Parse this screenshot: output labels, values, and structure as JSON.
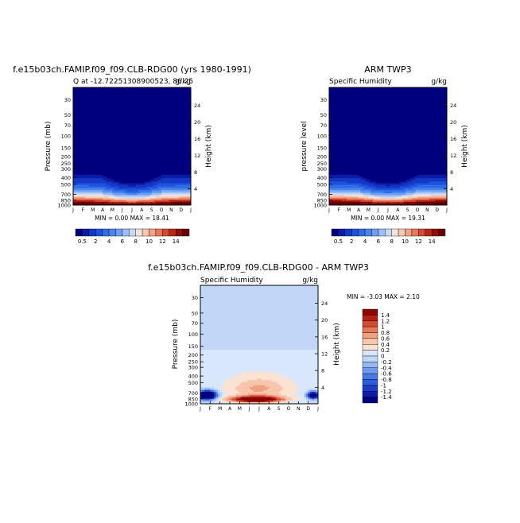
{
  "chart_data": [
    {
      "type": "heatmap",
      "title": "f.e15b03ch.FAMIP.f09_f09.CLB-RDG00 (yrs 1980-1991)",
      "subtitle_left": "Q at -12.72251308900523, 86.25",
      "subtitle_right": "g/kg",
      "stats_text": "MIN =    0.00 MAX =   18.41",
      "ylabel": "Pressure (mb)",
      "y2label": "Height (km)",
      "x_ticks": [
        "J",
        "F",
        "M",
        "A",
        "M",
        "J",
        "J",
        "A",
        "S",
        "O",
        "N",
        "D",
        "J"
      ],
      "y_ticks": [
        30,
        50,
        70,
        100,
        150,
        200,
        250,
        300,
        400,
        500,
        700,
        850,
        1000
      ],
      "y2_ticks": [
        24,
        20,
        16,
        12,
        8,
        4
      ],
      "colorbar_labels": [
        "0.5",
        "2",
        "4",
        "6",
        "8",
        "10",
        "12",
        "14"
      ],
      "min": 0.0,
      "max": 18.41,
      "field": "humidity",
      "surface_value": 17.6,
      "humid_top_mb": 300,
      "dry_season_amplitude": 0.25,
      "moist_season_amplitude": 0.06
    },
    {
      "type": "heatmap",
      "title": "ARM TWP3",
      "subtitle_left": "Specific Humidity",
      "subtitle_right": "g/kg",
      "stats_text": "MIN =    0.00 MAX =   19.31",
      "ylabel": "pressure  level",
      "y2label": "Height (km)",
      "x_ticks": [
        "J",
        "F",
        "M",
        "A",
        "M",
        "J",
        "J",
        "A",
        "S",
        "O",
        "N",
        "D",
        "J"
      ],
      "y_ticks": [
        30,
        50,
        70,
        100,
        150,
        200,
        250,
        300,
        400,
        500,
        700,
        850,
        1000
      ],
      "y2_ticks": [
        24,
        20,
        16,
        12,
        8,
        4
      ],
      "colorbar_labels": [
        "0.5",
        "2",
        "4",
        "6",
        "8",
        "10",
        "12",
        "14"
      ],
      "min": 0.0,
      "max": 19.31,
      "field": "humidity",
      "surface_value": 18.4,
      "humid_top_mb": 300,
      "dry_season_amplitude": 0.25,
      "moist_season_amplitude": 0.07
    },
    {
      "type": "heatmap",
      "title": "f.e15b03ch.FAMIP.f09_f09.CLB-RDG00 - ARM TWP3",
      "subtitle_left": "Specific Humidity",
      "subtitle_right": "g/kg",
      "stats_text": "MIN =   -3.03 MAX =    2.10",
      "ylabel": "Pressure (mb)",
      "y2label": "Height (km)",
      "x_ticks": [
        "J",
        "F",
        "M",
        "A",
        "M",
        "J",
        "J",
        "A",
        "S",
        "O",
        "N",
        "D",
        "J"
      ],
      "y_ticks": [
        30,
        50,
        70,
        100,
        150,
        200,
        250,
        300,
        400,
        500,
        700,
        850,
        1000
      ],
      "y2_ticks": [
        24,
        20,
        16,
        12,
        8,
        4
      ],
      "colorbar_labels": [
        "1.4",
        "1.2",
        "1",
        "0.8",
        "0.6",
        "0.4",
        "0.2",
        "0",
        "-0.2",
        "-0.4",
        "-0.6",
        "-0.8",
        "-1",
        "-1.2",
        "-1.4"
      ],
      "min": -3.03,
      "max": 2.1,
      "field": "difference",
      "features": {
        "stratosphere_value": -0.1,
        "upper_trop_value": 0.1,
        "wet_anomaly": {
          "center_month": 6.2,
          "center_mb": 870,
          "width_months": 2.6,
          "depth_mb": 90,
          "value": 2.1
        },
        "midlevel_wet": {
          "center_month": 6.5,
          "center_mb": 600,
          "width_months": 3.0,
          "depth_mb": 200,
          "value": 0.55
        },
        "dry_anomaly_jan": {
          "center_month": 1.2,
          "center_mb": 760,
          "width_months": 0.9,
          "depth_mb": 110,
          "value": -3.03
        },
        "dry_anomaly_dec": {
          "center_month": 12.0,
          "center_mb": 760,
          "width_months": 0.6,
          "depth_mb": 90,
          "value": -2.3
        }
      }
    }
  ],
  "palettes": {
    "humidity": [
      "#00007f",
      "#0a1ca6",
      "#1437c6",
      "#1f52dc",
      "#2f6de8",
      "#4b86ee",
      "#6ea0f2",
      "#9cbdf5",
      "#c8daf8",
      "#f3e3da",
      "#f7c8b2",
      "#f3a284",
      "#e8785c",
      "#d44c34",
      "#b82616",
      "#900c08",
      "#6a0000"
    ],
    "difference": [
      "#00007f",
      "#0c1ea8",
      "#1a3cc8",
      "#2c5be0",
      "#4a7ae9",
      "#6f99ef",
      "#98b8f3",
      "#c2d7f7",
      "#d8e7fb",
      "#fbe3d4",
      "#f8c5ad",
      "#f2a083",
      "#e6775a",
      "#d24a30",
      "#b41f12",
      "#8c0405"
    ]
  }
}
